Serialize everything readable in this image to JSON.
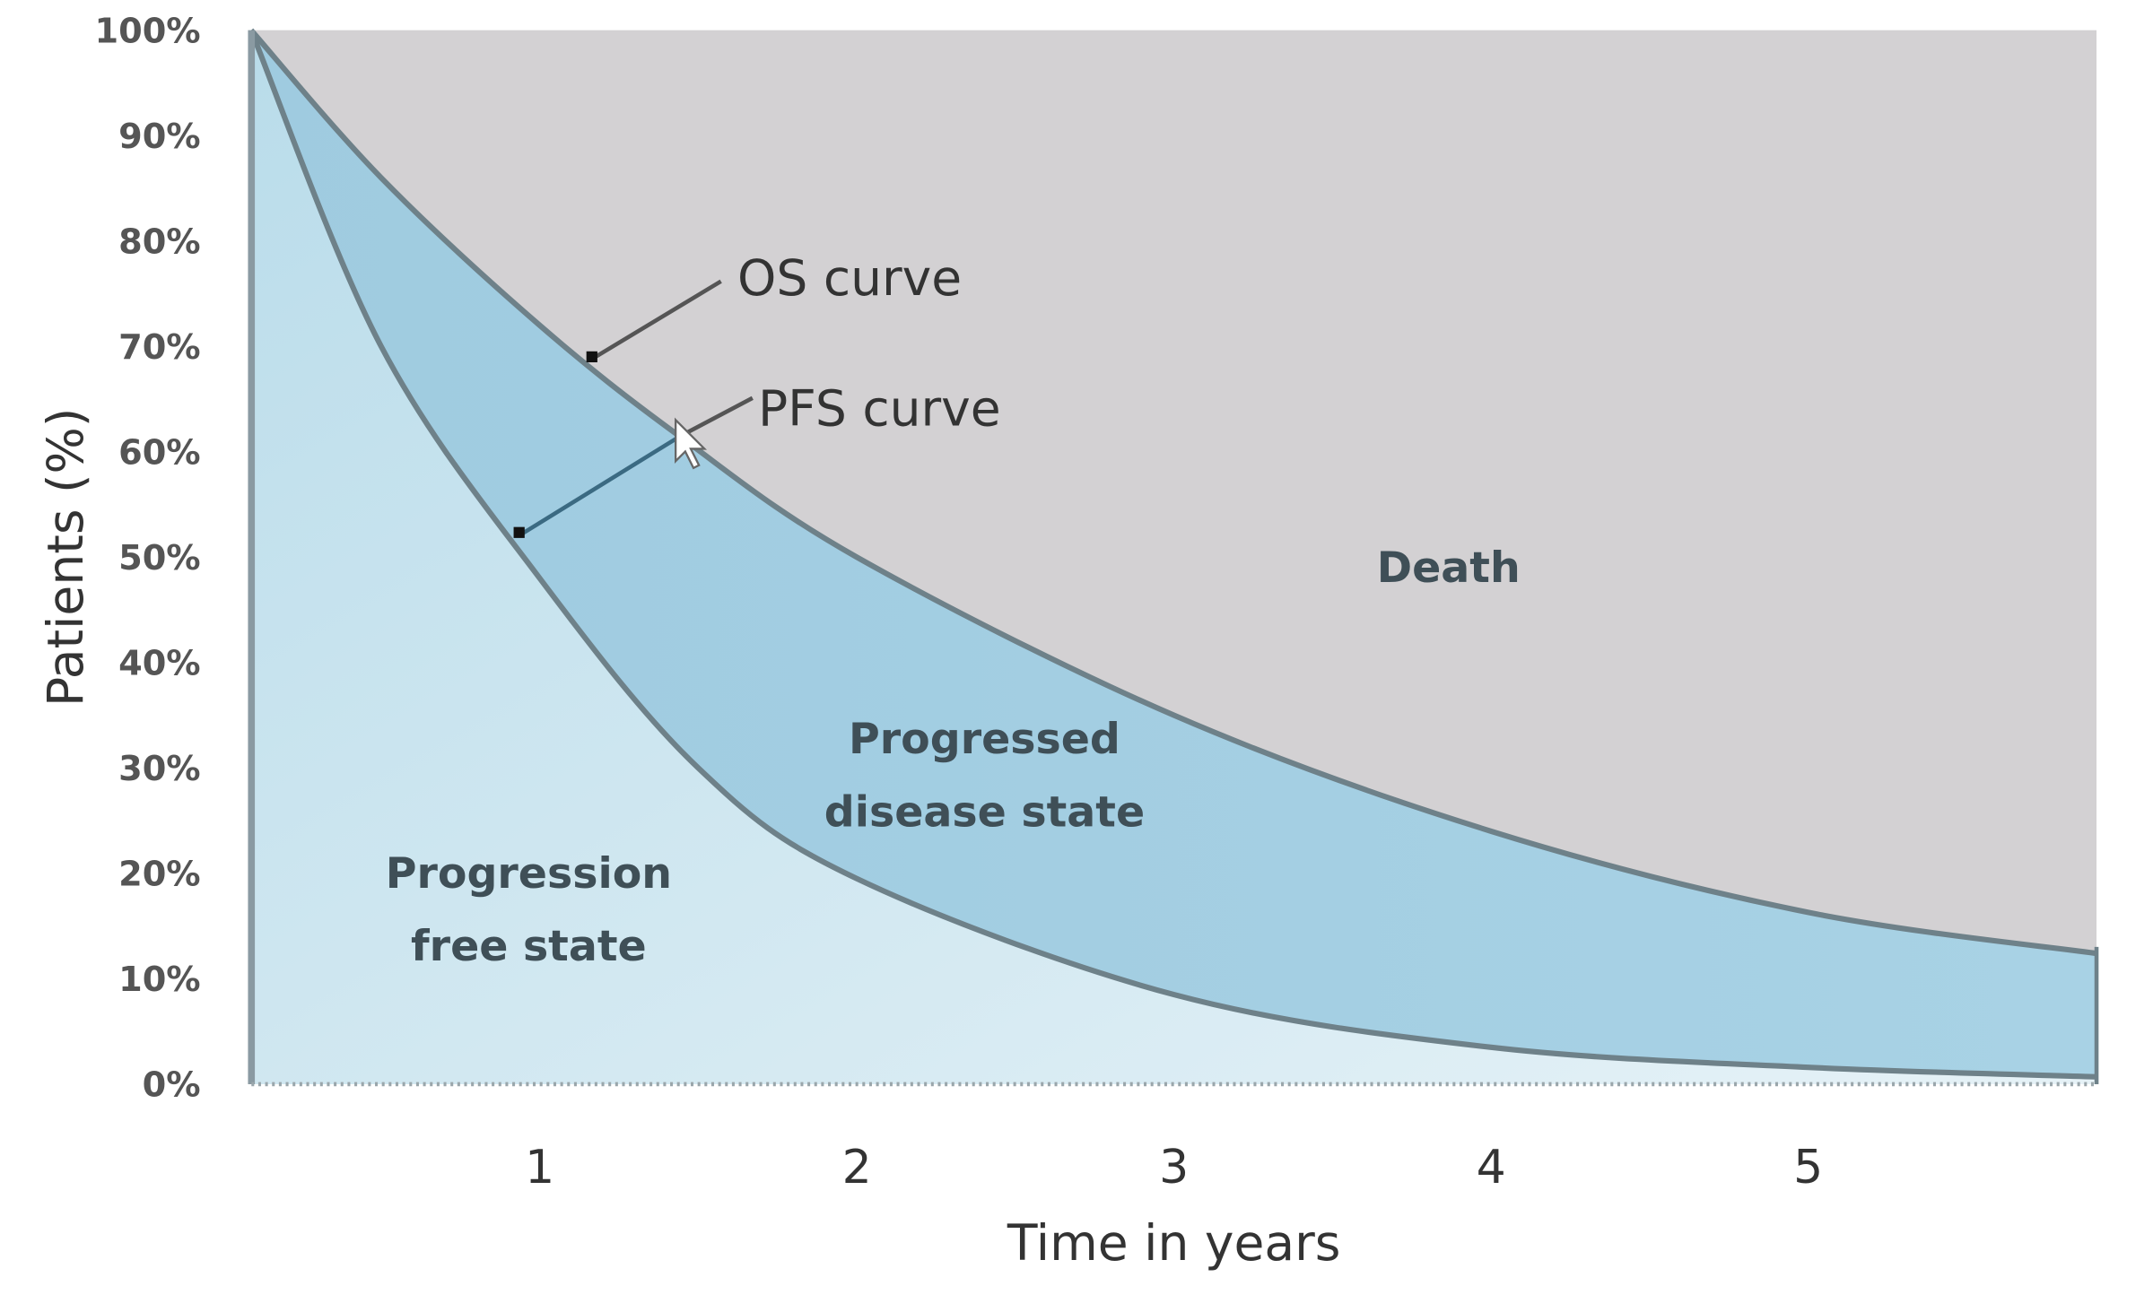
{
  "chart_data": {
    "type": "area",
    "xlabel": "Time in years",
    "ylabel": "Patients (%)",
    "xlim": [
      0.09,
      5.91
    ],
    "ylim": [
      0,
      100
    ],
    "x_ticks": [
      "1",
      "2",
      "3",
      "4",
      "5"
    ],
    "x_tick_values": [
      1,
      2,
      3,
      4,
      5
    ],
    "y_ticks": [
      "0%",
      "10%",
      "20%",
      "30%",
      "40%",
      "50%",
      "60%",
      "70%",
      "80%",
      "90%",
      "100%"
    ],
    "y_tick_values": [
      0,
      10,
      20,
      30,
      40,
      50,
      60,
      70,
      80,
      90,
      100
    ],
    "grid": false,
    "series": [
      {
        "name": "OS curve",
        "x": [
          0.09,
          0.5,
          1,
          1.44,
          2,
          3,
          4,
          5,
          5.91
        ],
        "y": [
          100,
          86,
          72,
          61.5,
          50,
          35,
          24,
          16.3,
          12.4
        ]
      },
      {
        "name": "PFS curve",
        "x": [
          0.09,
          0.5,
          1,
          1.5,
          2,
          3,
          4,
          5,
          5.91
        ],
        "y": [
          100,
          70,
          48,
          30,
          19.5,
          8.5,
          3.5,
          1.6,
          0.7
        ]
      }
    ],
    "regions": {
      "death": "Death",
      "progressed": [
        "Progressed",
        "disease state"
      ],
      "progression_free": [
        "Progression",
        "free state"
      ]
    },
    "annotations": {
      "os": "OS curve",
      "pfs": "PFS curve"
    },
    "colors": {
      "death": "#d3d1d3",
      "progressed": "#9ccbe0",
      "progression_free": "#d6ebf4",
      "curve": "#6e8189"
    }
  }
}
